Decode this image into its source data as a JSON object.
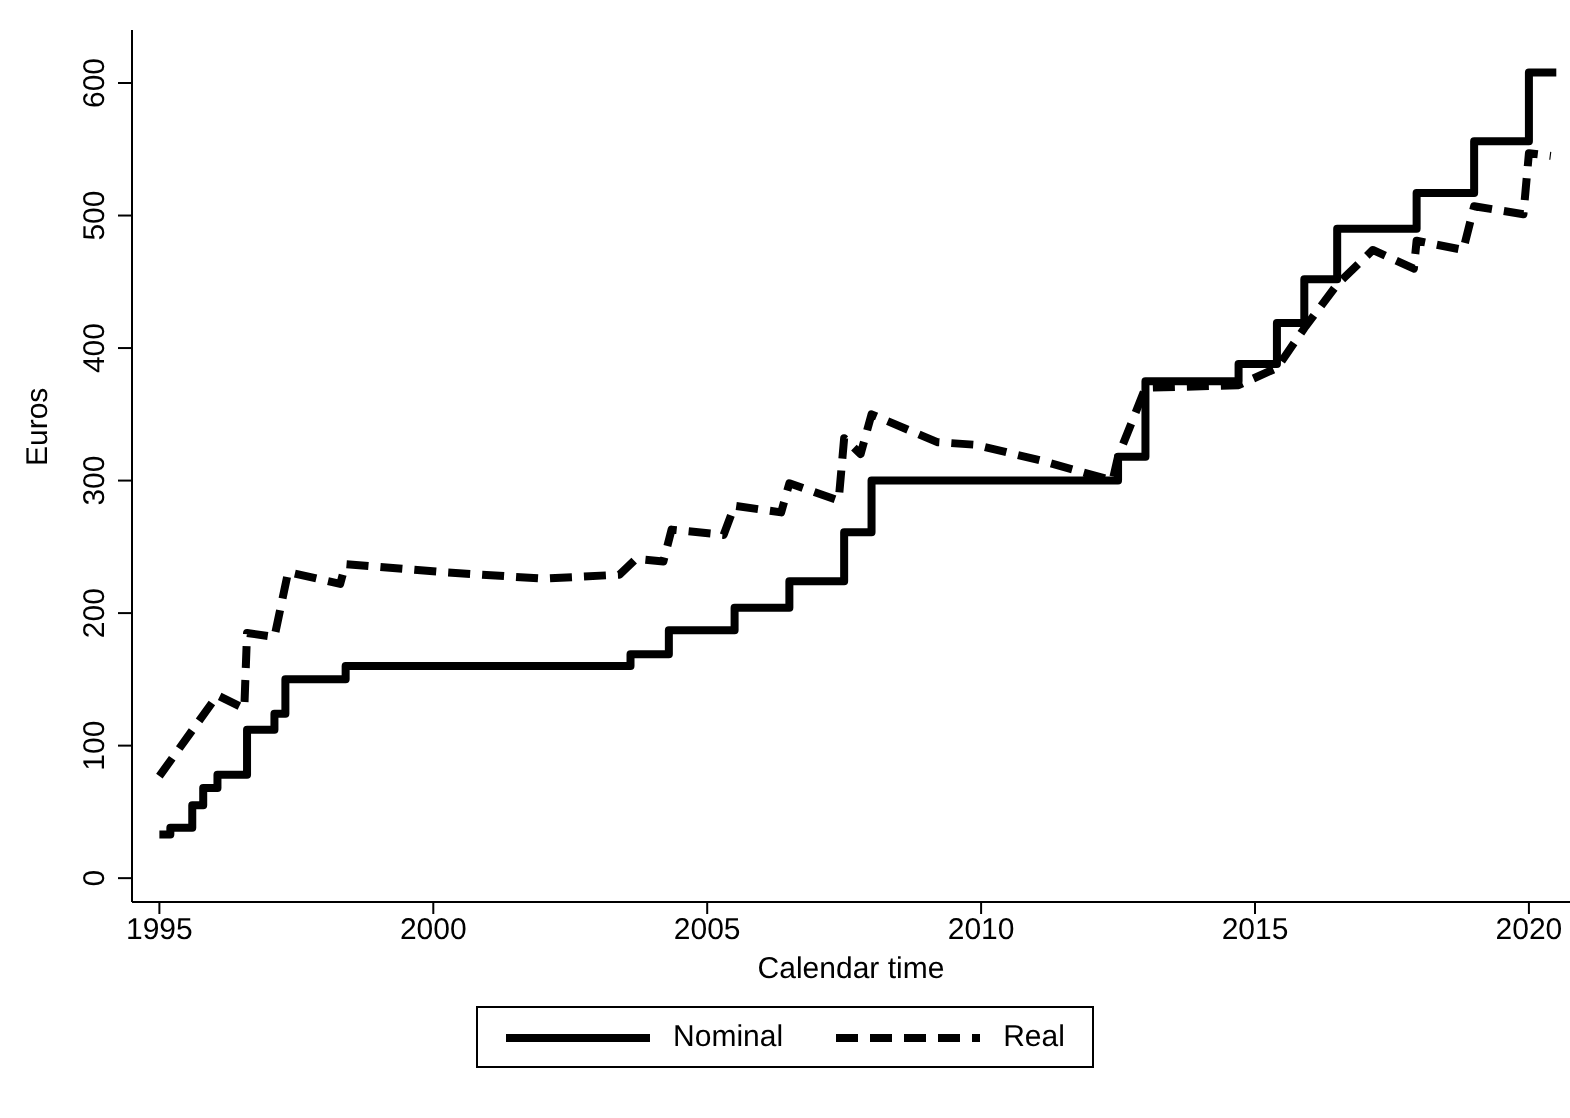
{
  "chart_data": {
    "type": "line",
    "xlabel": "Calendar time",
    "ylabel": "Euros",
    "xlim": [
      1994.5,
      2020.75
    ],
    "xticks": [
      1995,
      2000,
      2005,
      2010,
      2015,
      2020
    ],
    "ylim": [
      -18,
      640
    ],
    "yticks": [
      0,
      100,
      200,
      300,
      400,
      500,
      600
    ],
    "legend": "bottom",
    "series": [
      {
        "name": "Nominal",
        "type": "step",
        "color": "#000000",
        "line_style": "solid",
        "x": [
          1995.0,
          1995.2,
          1995.6,
          1995.8,
          1996.06,
          1996.6,
          1997.1,
          1997.3,
          1998.4,
          2003.6,
          2004.3,
          2005.5,
          2006.5,
          2007.5,
          2008.0,
          2012.5,
          2013.0,
          2014.7,
          2015.4,
          2015.9,
          2016.5,
          2017.95,
          2019.0,
          2020.0,
          2020.5
        ],
        "values": [
          33,
          38,
          55,
          68,
          78,
          112,
          124,
          150,
          160,
          169,
          187,
          204,
          224,
          261,
          300,
          318,
          375,
          388,
          419,
          452,
          490,
          517,
          556,
          608,
          608
        ]
      },
      {
        "name": "Real",
        "type": "line",
        "color": "#000000",
        "line_style": "dashed",
        "x": [
          1995.0,
          1996.06,
          1996.55,
          1996.6,
          1997.1,
          1997.35,
          1998.3,
          1998.4,
          2000.15,
          2002.0,
          2003.4,
          2003.7,
          2004.2,
          2004.35,
          2005.3,
          2005.5,
          2006.35,
          2006.5,
          2007.4,
          2007.5,
          2007.8,
          2008.0,
          2009.2,
          2009.9,
          2011.1,
          2012.4,
          2012.5,
          2013.0,
          2014.7,
          2015.4,
          2015.9,
          2016.5,
          2017.15,
          2017.9,
          2017.95,
          2018.8,
          2019.0,
          2019.9,
          2020.0,
          2020.4
        ],
        "values": [
          77,
          138,
          128,
          185,
          182,
          231,
          222,
          237,
          231,
          226,
          229,
          241,
          239,
          263,
          259,
          281,
          276,
          298,
          285,
          332,
          320,
          350,
          329,
          327,
          315,
          300,
          318,
          370,
          372,
          385,
          415,
          448,
          474,
          460,
          481,
          474,
          507,
          501,
          547,
          545
        ]
      }
    ]
  }
}
